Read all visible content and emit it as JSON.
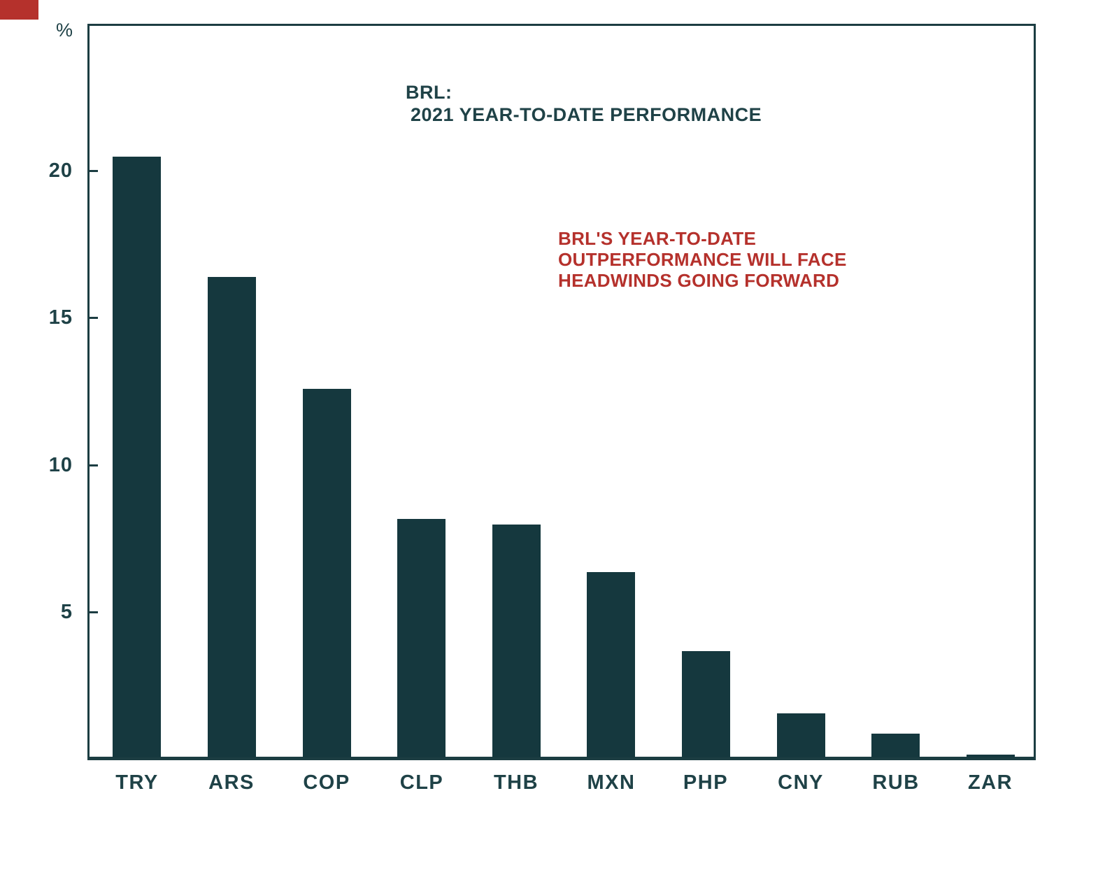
{
  "page": {
    "background": "#ffffff"
  },
  "decor": {
    "corner_block_color": "#b5312c"
  },
  "chart_data": {
    "type": "bar",
    "title_line1": "BRL:",
    "title_line2": "2021 YEAR-TO-DATE PERFORMANCE",
    "annotation": {
      "lines": [
        "BRL'S YEAR-TO-DATE",
        "OUTPERFORMANCE WILL FACE",
        "HEADWINDS GOING FORWARD"
      ],
      "color": "#b5312c"
    },
    "categories": [
      "TRY",
      "ARS",
      "COP",
      "CLP",
      "THB",
      "MXN",
      "PHP",
      "CNY",
      "RUB",
      "ZAR"
    ],
    "values": [
      20.4,
      16.3,
      12.5,
      8.1,
      7.9,
      6.3,
      3.6,
      1.5,
      0.8,
      0.1
    ],
    "xlabel": "",
    "ylabel": "%",
    "y_axis": {
      "unit_label": "%",
      "ticks": [
        5,
        10,
        15,
        20
      ],
      "ylim": [
        0,
        25
      ]
    },
    "grid": false,
    "legend": "none",
    "bar_color": "#15383e",
    "axis_color": "#1c3d42",
    "text_color": "#1f4247"
  }
}
